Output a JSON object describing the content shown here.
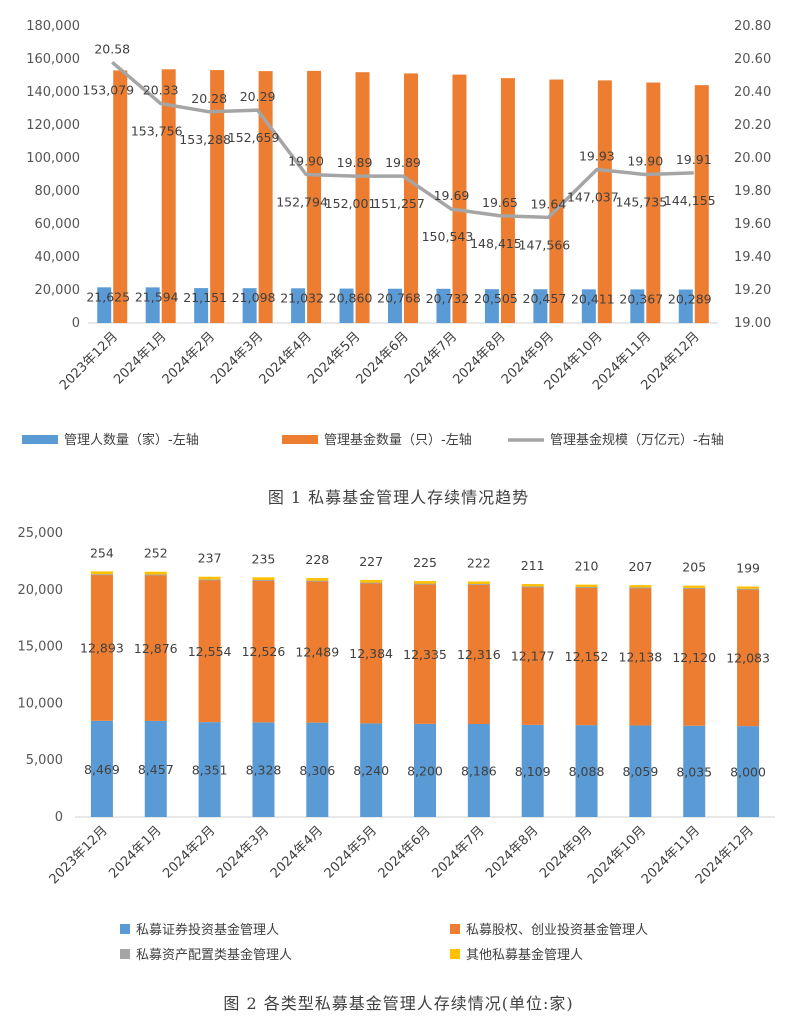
{
  "chart_data": [
    {
      "type": "bar",
      "categories": [
        "2023年12月",
        "2024年1月",
        "2024年2月",
        "2024年3月",
        "2024年4月",
        "2024年5月",
        "2024年6月",
        "2024年7月",
        "2024年8月",
        "2024年9月",
        "2024年10月",
        "2024年11月",
        "2024年12月"
      ],
      "series": [
        {
          "name": "管理人数量（家）-左轴",
          "type": "bar",
          "axis": "left",
          "color": "#5B9BD5",
          "values": [
            21625,
            21594,
            21151,
            21098,
            21032,
            20860,
            20768,
            20732,
            20505,
            20457,
            20411,
            20367,
            20289
          ],
          "labels": [
            "21,625",
            "21,594",
            "21,151",
            "21,098",
            "21,032",
            "20,860",
            "20,768",
            "20,732",
            "20,505",
            "20,457",
            "20,411",
            "20,367",
            "20,289"
          ]
        },
        {
          "name": "管理基金数量（只）-左轴",
          "type": "bar",
          "axis": "left",
          "color": "#ED7D31",
          "values": [
            153079,
            153756,
            153288,
            152659,
            152794,
            152001,
            151257,
            150543,
            148415,
            147566,
            147037,
            145735,
            144155
          ],
          "labels": [
            "153,079",
            "153,756",
            "153,288",
            "152,659",
            "152,794",
            "152,001",
            "151,257",
            "150,543",
            "148,415",
            "147,566",
            "147,037",
            "145,735",
            "144,155"
          ]
        },
        {
          "name": "管理基金规模（万亿元）-右轴",
          "type": "line",
          "axis": "right",
          "color": "#A5A5A5",
          "values": [
            20.58,
            20.33,
            20.28,
            20.29,
            19.9,
            19.89,
            19.89,
            19.69,
            19.65,
            19.64,
            19.93,
            19.9,
            19.91
          ],
          "labels": [
            "20.58",
            "20.33",
            "20.28",
            "20.29",
            "19.90",
            "19.89",
            "19.89",
            "19.69",
            "19.65",
            "19.64",
            "19.93",
            "19.90",
            "19.91"
          ]
        }
      ],
      "y_left": {
        "min": 0,
        "max": 180000,
        "ticks": [
          "0",
          "20,000",
          "40,000",
          "60,000",
          "80,000",
          "100,000",
          "120,000",
          "140,000",
          "160,000",
          "180,000"
        ]
      },
      "y_right": {
        "min": 19.0,
        "max": 20.8,
        "ticks": [
          "19.00",
          "19.20",
          "19.40",
          "19.60",
          "19.80",
          "20.00",
          "20.20",
          "20.40",
          "20.60",
          "20.80"
        ]
      },
      "grid": false,
      "legend_position": "bottom",
      "caption": "图 1  私募基金管理人存续情况趋势"
    },
    {
      "type": "stacked_bar",
      "categories": [
        "2023年12月",
        "2024年1月",
        "2024年2月",
        "2024年3月",
        "2024年4月",
        "2024年5月",
        "2024年6月",
        "2024年7月",
        "2024年8月",
        "2024年9月",
        "2024年10月",
        "2024年11月",
        "2024年12月"
      ],
      "series": [
        {
          "name": "私募证券投资基金管理人",
          "color": "#5B9BD5",
          "values": [
            8469,
            8457,
            8351,
            8328,
            8306,
            8240,
            8200,
            8186,
            8109,
            8088,
            8059,
            8035,
            8000
          ],
          "labels": [
            "8,469",
            "8,457",
            "8,351",
            "8,328",
            "8,306",
            "8,240",
            "8,200",
            "8,186",
            "8,109",
            "8,088",
            "8,059",
            "8,035",
            "8,000"
          ]
        },
        {
          "name": "私募股权、创业投资基金管理人",
          "color": "#ED7D31",
          "values": [
            12893,
            12876,
            12554,
            12526,
            12489,
            12384,
            12335,
            12316,
            12177,
            12152,
            12138,
            12120,
            12083
          ],
          "labels": [
            "12,893",
            "12,876",
            "12,554",
            "12,526",
            "12,489",
            "12,384",
            "12,335",
            "12,316",
            "12,177",
            "12,152",
            "12,138",
            "12,120",
            "12,083"
          ]
        },
        {
          "name": "私募资产配置类基金管理人",
          "color": "#A5A5A5",
          "values": [
            9,
            9,
            9,
            9,
            9,
            9,
            9,
            9,
            9,
            8,
            8,
            8,
            8
          ]
        },
        {
          "name": "其他私募基金管理人",
          "color": "#FFC000",
          "values": [
            254,
            252,
            237,
            235,
            228,
            227,
            225,
            222,
            211,
            210,
            207,
            205,
            199
          ],
          "labels": [
            "254",
            "252",
            "237",
            "235",
            "228",
            "227",
            "225",
            "222",
            "211",
            "210",
            "207",
            "205",
            "199"
          ]
        }
      ],
      "y_axis": {
        "min": 0,
        "max": 25000,
        "ticks": [
          "0",
          "5,000",
          "10,000",
          "15,000",
          "20,000",
          "25,000"
        ]
      },
      "grid": false,
      "legend_position": "bottom",
      "caption": "图 2  各类型私募基金管理人存续情况(单位:家)"
    }
  ]
}
